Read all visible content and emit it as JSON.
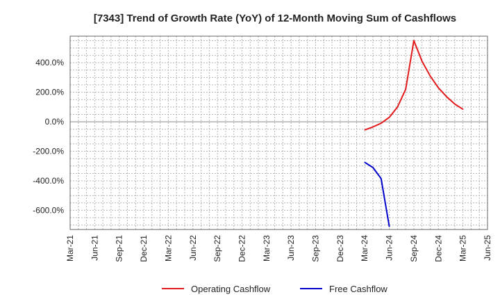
{
  "chart_data": {
    "type": "line",
    "title": "[7343]  Trend of Growth Rate (YoY) of 12-Month Moving Sum of Cashflows",
    "xlabel": "",
    "ylabel": "",
    "ylim": [
      -730,
      580
    ],
    "y_ticks": [
      400,
      200,
      0,
      -200,
      -400,
      -600
    ],
    "y_tick_labels": [
      "400.0%",
      "200.0%",
      "0.0%",
      "-200.0%",
      "-400.0%",
      "-600.0%"
    ],
    "x_ticks": [
      "2021-03",
      "2021-06",
      "2021-09",
      "2021-12",
      "2022-03",
      "2022-06",
      "2022-09",
      "2022-12",
      "2023-03",
      "2023-06",
      "2023-09",
      "2023-12",
      "2024-03",
      "2024-06",
      "2024-09",
      "2024-12",
      "2025-03",
      "2025-06"
    ],
    "x_tick_labels": [
      "Mar-21",
      "Jun-21",
      "Sep-21",
      "Dec-21",
      "Mar-22",
      "Jun-22",
      "Sep-22",
      "Dec-22",
      "Mar-23",
      "Jun-23",
      "Sep-23",
      "Dec-23",
      "Mar-24",
      "Jun-24",
      "Sep-24",
      "Dec-24",
      "Mar-25",
      "Jun-25"
    ],
    "grid": true,
    "legend_position": "bottom",
    "series": [
      {
        "name": "Operating Cashflow",
        "color": "#e31a1c",
        "points": [
          {
            "x": "2024-03",
            "y": -55
          },
          {
            "x": "2024-04",
            "y": -35
          },
          {
            "x": "2024-05",
            "y": -10
          },
          {
            "x": "2024-06",
            "y": 30
          },
          {
            "x": "2024-07",
            "y": 100
          },
          {
            "x": "2024-08",
            "y": 220
          },
          {
            "x": "2024-09",
            "y": 550
          },
          {
            "x": "2024-10",
            "y": 410
          },
          {
            "x": "2024-11",
            "y": 310
          },
          {
            "x": "2024-12",
            "y": 230
          },
          {
            "x": "2025-01",
            "y": 170
          },
          {
            "x": "2025-02",
            "y": 120
          },
          {
            "x": "2025-03",
            "y": 85
          }
        ]
      },
      {
        "name": "Free Cashflow",
        "color": "#0000cc",
        "points": [
          {
            "x": "2024-03",
            "y": -275
          },
          {
            "x": "2024-04",
            "y": -310
          },
          {
            "x": "2024-05",
            "y": -385
          },
          {
            "x": "2024-06",
            "y": -710
          }
        ]
      }
    ]
  }
}
